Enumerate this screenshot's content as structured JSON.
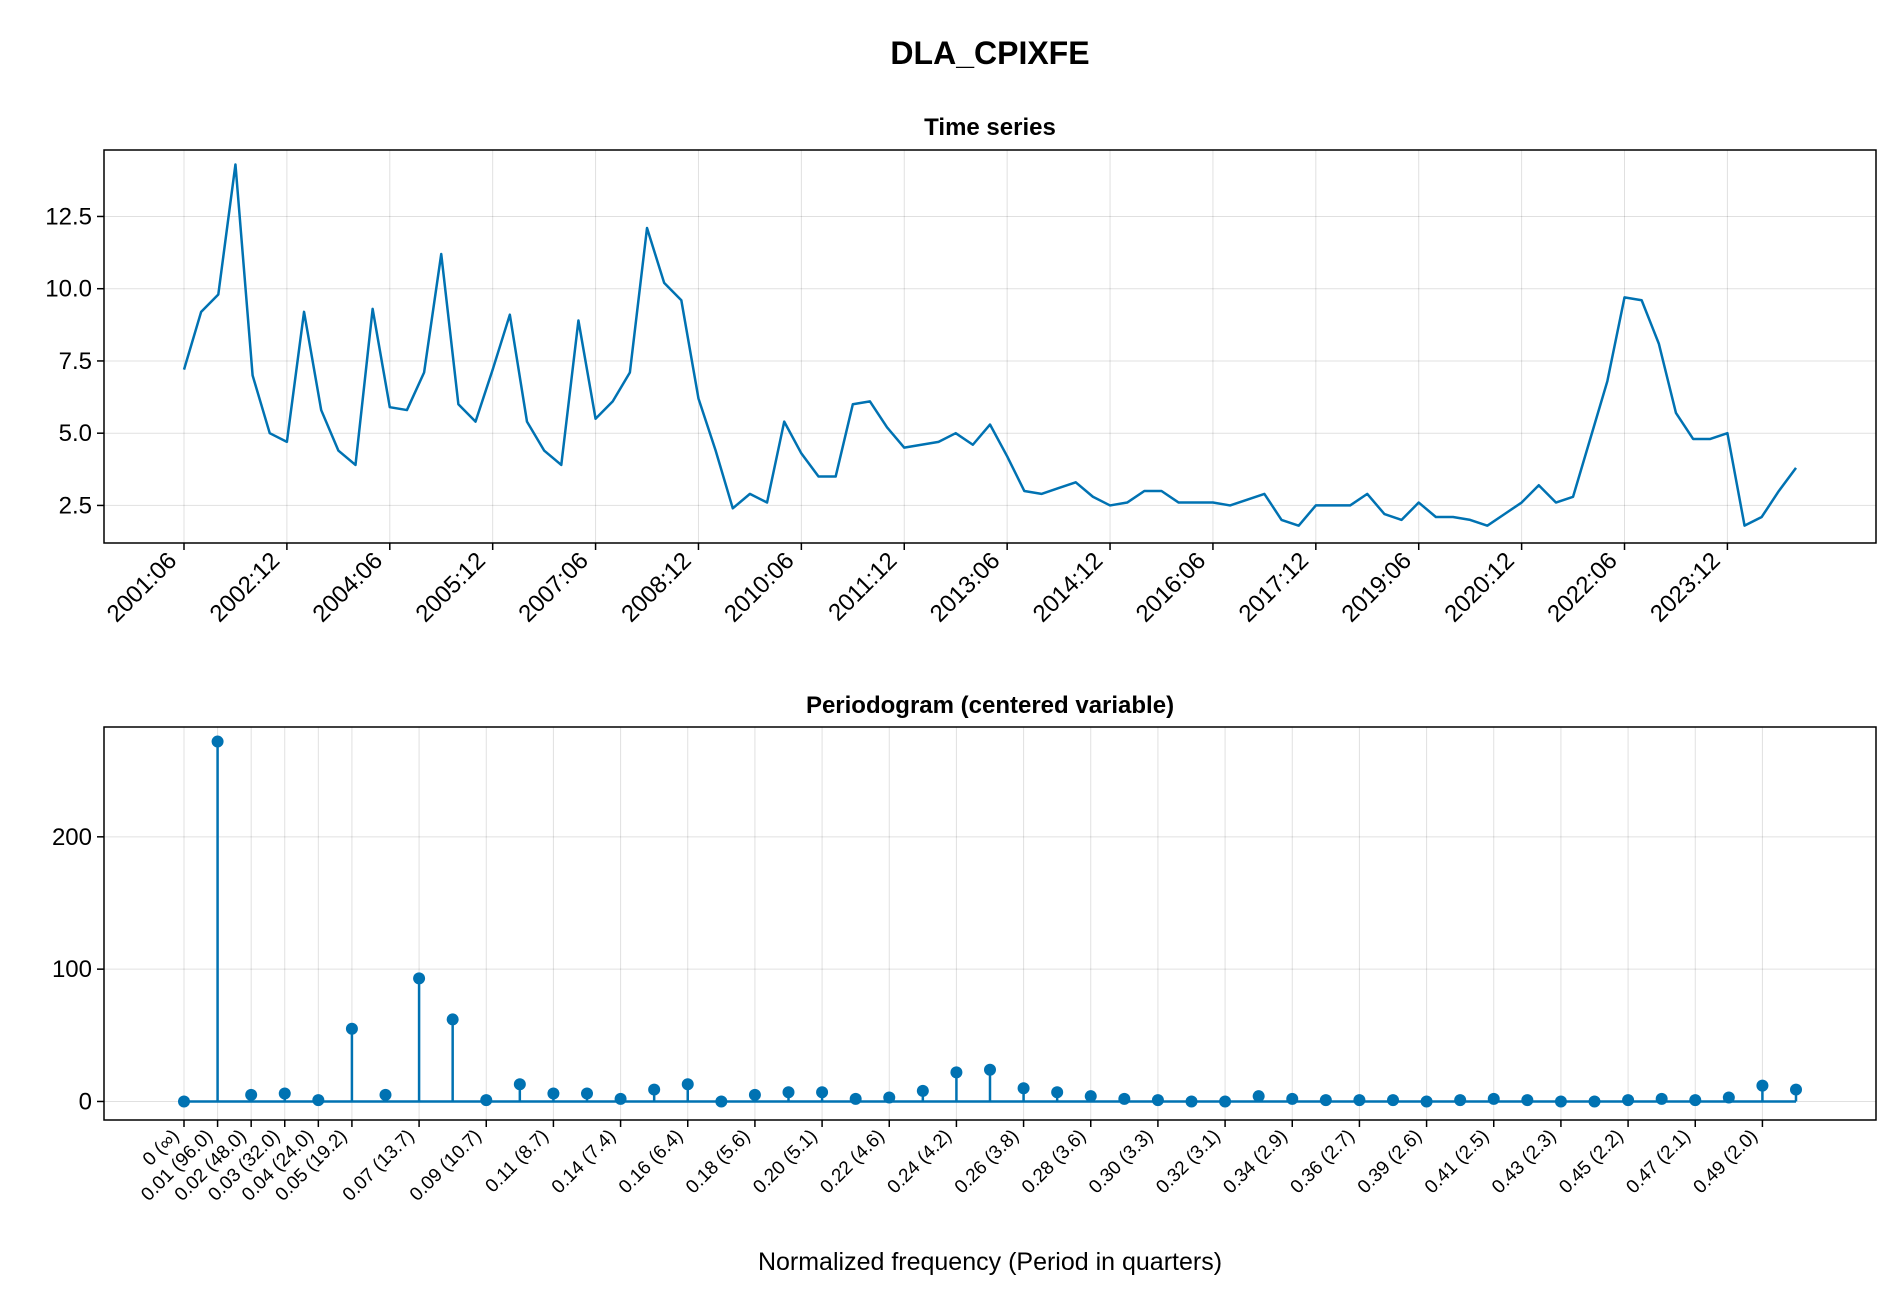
{
  "figure": {
    "title": "DLA_CPIXFE",
    "accent_color": "#0072b2"
  },
  "chart_data": [
    {
      "type": "line",
      "title": "Time series",
      "xlabel": "",
      "ylabel": "",
      "ylim": [
        1.2,
        14.8
      ],
      "grid": true,
      "yticks": [
        2.5,
        5.0,
        7.5,
        10.0,
        12.5
      ],
      "ytick_labels": [
        "2.5",
        "5.0",
        "7.5",
        "10.0",
        "12.5"
      ],
      "xtick_labels": [
        "2001:06",
        "2002:12",
        "2004:06",
        "2005:12",
        "2007:06",
        "2008:12",
        "2010:06",
        "2011:12",
        "2013:06",
        "2014:12",
        "2016:06",
        "2017:12",
        "2019:06",
        "2020:12",
        "2022:06",
        "2023:12"
      ],
      "xtick_positions": [
        0,
        6,
        12,
        18,
        24,
        30,
        36,
        42,
        48,
        54,
        60,
        66,
        72,
        78,
        84,
        90
      ],
      "series": [
        {
          "values": [
            7.2,
            9.2,
            9.8,
            14.3,
            7.0,
            5.0,
            4.7,
            9.2,
            5.8,
            4.4,
            3.9,
            9.3,
            5.9,
            5.8,
            7.1,
            11.2,
            6.0,
            5.4,
            7.2,
            9.1,
            5.4,
            4.4,
            3.9,
            8.9,
            5.5,
            6.1,
            7.1,
            12.1,
            10.2,
            9.6,
            6.2,
            4.4,
            2.4,
            2.9,
            2.6,
            5.4,
            4.3,
            3.5,
            3.5,
            6.0,
            6.1,
            5.2,
            4.5,
            4.6,
            4.7,
            5.0,
            4.6,
            5.3,
            4.2,
            3.0,
            2.9,
            3.1,
            3.3,
            2.8,
            2.5,
            2.6,
            3.0,
            3.0,
            2.6,
            2.6,
            2.6,
            2.5,
            2.7,
            2.9,
            2.0,
            1.8,
            2.5,
            2.5,
            2.5,
            2.9,
            2.2,
            2.0,
            2.6,
            2.1,
            2.1,
            2.0,
            1.8,
            2.2,
            2.6,
            3.2,
            2.6,
            2.8,
            4.8,
            6.8,
            9.7,
            9.6,
            8.1,
            5.7,
            4.8,
            4.8,
            5.0,
            1.8,
            2.1,
            3.0,
            3.8
          ]
        }
      ]
    },
    {
      "type": "stem",
      "title": "Periodogram (centered variable)",
      "xlabel": "Normalized frequency (Period in quarters)",
      "ylabel": "",
      "ylim": [
        -14,
        283
      ],
      "grid": true,
      "yticks": [
        0,
        100,
        200
      ],
      "ytick_labels": [
        "0",
        "100",
        "200"
      ],
      "xtick_labels": [
        "0 (∞)",
        "0.01 (96.0)",
        "0.02 (48.0)",
        "0.03 (32.0)",
        "0.04 (24.0)",
        "0.05 (19.2)",
        "0.07 (13.7)",
        "0.09 (10.7)",
        "0.11 (8.7)",
        "0.14 (7.4)",
        "0.16 (6.4)",
        "0.18 (5.6)",
        "0.20 (5.1)",
        "0.22 (4.6)",
        "0.24 (4.2)",
        "0.26 (3.8)",
        "0.28 (3.6)",
        "0.30 (3.3)",
        "0.32 (3.1)",
        "0.34 (2.9)",
        "0.36 (2.7)",
        "0.39 (2.6)",
        "0.41 (2.5)",
        "0.43 (2.3)",
        "0.45 (2.2)",
        "0.47 (2.1)",
        "0.49 (2.0)"
      ],
      "xtick_positions": [
        0,
        1,
        2,
        3,
        4,
        5,
        7,
        9,
        11,
        13,
        15,
        17,
        19,
        21,
        23,
        25,
        27,
        29,
        31,
        33,
        35,
        37,
        39,
        41,
        43,
        45,
        47
      ],
      "series": [
        {
          "values": [
            0,
            272,
            5,
            6,
            1,
            55,
            5,
            93,
            62,
            1,
            13,
            6,
            6,
            2,
            9,
            13,
            0,
            5,
            7,
            7,
            2,
            3,
            8,
            22,
            24,
            10,
            7,
            4,
            2,
            1,
            0,
            0,
            4,
            2,
            1,
            1,
            1,
            0,
            1,
            2,
            1,
            0,
            0,
            1,
            2,
            1,
            3,
            12,
            9
          ]
        }
      ]
    }
  ]
}
